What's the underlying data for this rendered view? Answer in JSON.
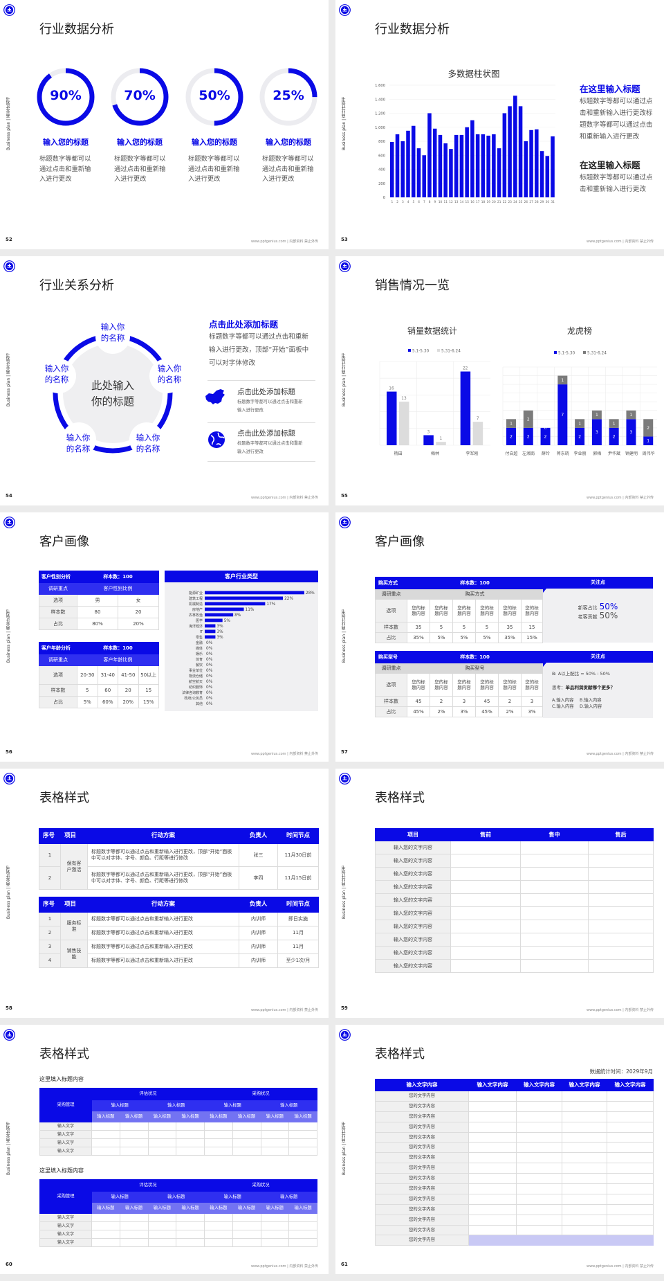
{
  "common": {
    "sidebar": "Business plan | 商业计划书",
    "footer": "www.pptgenius.com | 内部资料 禁止外传"
  },
  "colors": {
    "accent": "#0a0ae6",
    "ring_track": "#ececf0",
    "panel": "#f0f0f2",
    "series_light": "#dcdcdc",
    "series_dark": "#7b7b7b",
    "highlight_row": "#c9c9f5"
  },
  "slides": [
    {
      "page": "52",
      "title": "行业数据分析",
      "rings": [
        {
          "percent": 90,
          "label": "90%",
          "heading": "输入您的标题",
          "desc": "标题数字等都可以通过点击和重新输入进行更改"
        },
        {
          "percent": 70,
          "label": "70%",
          "heading": "输入您的标题",
          "desc": "标题数字等都可以通过点击和重新输入进行更改"
        },
        {
          "percent": 50,
          "label": "50%",
          "heading": "输入您的标题",
          "desc": "标题数字等都可以通过点击和重新输入进行更改"
        },
        {
          "percent": 25,
          "label": "25%",
          "heading": "输入您的标题",
          "desc": "标题数字等都可以通过点击和重新输入进行更改"
        }
      ]
    },
    {
      "page": "53",
      "title": "行业数据分析",
      "side": [
        {
          "heading": "在这里输入标题",
          "text": "标题数字等都可以通过点击和重新输入进行更改标题数字等都可以通过点击和重新输入进行更改"
        },
        {
          "heading": "在这里输入标题",
          "text": "标题数字等都可以通过点击和重新输入进行更改"
        }
      ]
    },
    {
      "page": "54",
      "title": "行业关系分析",
      "center": "此处输入你的标题",
      "labels": [
        "输入你的名称",
        "输入你的名称",
        "输入你的名称",
        "输入你的名称",
        "输入你的名称"
      ],
      "heading": "点击此处添加标题",
      "text": "标题数字等都可以通过点击和重新输入进行更改，顶部“开始”面板中可以对字体修改",
      "items": [
        {
          "icon": "china-map-icon",
          "title": "点击此处添加标题",
          "desc": "标题数字等都可以通过点击和重新输入进行更改"
        },
        {
          "icon": "globe-icon",
          "title": "点击此处添加标题",
          "desc": "标题数字等都可以通过点击和重新输入进行更改"
        }
      ]
    },
    {
      "page": "55",
      "title": "销售情况一览"
    },
    {
      "page": "56",
      "title": "客户画像",
      "gender": {
        "title": "客户性别分析",
        "sample": "样本数：100",
        "focus_label": "调研重点",
        "focus": "客户性别比例",
        "rows": [
          [
            "选项",
            "男",
            "女"
          ],
          [
            "样本数",
            "80",
            "20"
          ],
          [
            "占比",
            "80%",
            "20%"
          ]
        ]
      },
      "age": {
        "title": "客户年龄分析",
        "sample": "样本数：100",
        "focus_label": "调研重点",
        "focus": "客户年龄比例",
        "rows": [
          [
            "选项",
            "20-30",
            "31-40",
            "41-50",
            "50以上"
          ],
          [
            "样本数",
            "5",
            "60",
            "20",
            "15"
          ],
          [
            "占比",
            "5%",
            "60%",
            "20%",
            "15%"
          ]
        ]
      }
    },
    {
      "page": "57",
      "title": "客户画像",
      "tables": [
        {
          "title": "购买方式",
          "sample": "样本数：100",
          "focus_label": "调研重点",
          "focus": "购买方式",
          "rows": [
            [
              "选项",
              "您的标题内容",
              "您的标题内容",
              "您的标题内容",
              "您的标题内容",
              "您的标题内容",
              "您的标题内容"
            ],
            [
              "样本数",
              "35",
              "5",
              "5",
              "5",
              "35",
              "15"
            ],
            [
              "占比",
              "35%",
              "5%",
              "5%",
              "5%",
              "35%",
              "15%"
            ]
          ]
        },
        {
          "title": "购买型号",
          "sample": "样本数：100",
          "focus_label": "调研重点",
          "focus": "购买型号",
          "rows": [
            [
              "选项",
              "您的标题内容",
              "您的标题内容",
              "您的标题内容",
              "您的标题内容",
              "您的标题内容",
              "您的标题内容"
            ],
            [
              "样本数",
              "45",
              "2",
              "3",
              "45",
              "2",
              "3"
            ],
            [
              "占比",
              "45%",
              "2%",
              "3%",
              "45%",
              "2%",
              "3%"
            ]
          ]
        }
      ],
      "panels": [
        {
          "title": "关注点",
          "stats": [
            {
              "label": "新客占比",
              "value": "50%"
            },
            {
              "label": "老客贡献",
              "value": "50%"
            }
          ]
        },
        {
          "title": "关注点",
          "ratio": "B: A以上配比 = 50% : 50%",
          "question_label": "思考：",
          "question": "单品利润贡献哪个更多？",
          "options": [
            "A.输入内容",
            "B.输入内容",
            "C.输入内容",
            "D.输入内容"
          ]
        }
      ]
    },
    {
      "page": "58",
      "title": "表格样式",
      "headers": [
        "序号",
        "项目",
        "行动方案",
        "负责人",
        "时间节点"
      ],
      "table1": {
        "groups": [
          {
            "name": "保有客户激活",
            "span": 2
          }
        ],
        "rows": [
          {
            "no": "1",
            "plan": "标题数字等都可以通过点击和重新输入进行更改，顶部“开始”面板中可以对字体、字号、颜色、行距等进行修改",
            "owner": "张三",
            "time": "11月30日前"
          },
          {
            "no": "2",
            "plan": "标题数字等都可以通过点击和重新输入进行更改，顶部“开始”面板中可以对字体、字号、颜色、行距等进行修改",
            "owner": "李四",
            "time": "11月15日前"
          }
        ]
      },
      "table2": {
        "groups": [
          {
            "name": "服务标准",
            "span": 2
          },
          {
            "name": "销售技能",
            "span": 2
          }
        ],
        "rows": [
          {
            "no": "1",
            "plan": "标题数字等都可以通过点击和重新输入进行更改",
            "owner": "内训师",
            "time": "即日实施"
          },
          {
            "no": "2",
            "plan": "标题数字等都可以通过点击和重新输入进行更改",
            "owner": "内训师",
            "time": "11月"
          },
          {
            "no": "3",
            "plan": "标题数字等都可以通过点击和重新输入进行更改",
            "owner": "内训师",
            "time": "11月"
          },
          {
            "no": "4",
            "plan": "标题数字等都可以通过点击和重新输入进行更改",
            "owner": "内训师",
            "time": "至少1次/月"
          }
        ]
      }
    },
    {
      "page": "59",
      "title": "表格样式",
      "headers": [
        "项目",
        "售前",
        "售中",
        "售后"
      ],
      "rows": [
        "输入您的文字内容",
        "输入您的文字内容",
        "输入您的文字内容",
        "输入您的文字内容",
        "输入您的文字内容",
        "输入您的文字内容",
        "输入您的文字内容",
        "输入您的文字内容",
        "输入您的文字内容",
        "输入您的文字内容"
      ]
    },
    {
      "page": "60",
      "title": "表格样式",
      "blocks": [
        {
          "subtitle": "这里填入标题内容",
          "corner": "采购管理",
          "groups": [
            "评估状况",
            "采购状况"
          ],
          "subgroups": [
            "输入标题",
            "输入标题",
            "输入标题",
            "输入标题"
          ],
          "columns": [
            "输入标题",
            "输入标题",
            "输入标题",
            "输入标题",
            "输入标题",
            "输入标题",
            "输入标题",
            "输入标题"
          ],
          "rows": [
            "输入文字",
            "输入文字",
            "输入文字",
            "输入文字"
          ]
        },
        {
          "subtitle": "这里填入标题内容",
          "corner": "采购管理",
          "groups": [
            "评估状况",
            "采购状况"
          ],
          "subgroups": [
            "输入标题",
            "输入标题",
            "输入标题",
            "输入标题"
          ],
          "columns": [
            "输入标题",
            "输入标题",
            "输入标题",
            "输入标题",
            "输入标题",
            "输入标题",
            "输入标题",
            "输入标题"
          ],
          "rows": [
            "输入文字",
            "输入文字",
            "输入文字",
            "输入文字"
          ]
        }
      ]
    },
    {
      "page": "61",
      "title": "表格样式",
      "date": "数据统计时间：2029年9月",
      "headers": [
        "输入文字内容",
        "输入文字内容",
        "输入文字内容",
        "输入文字内容",
        "输入文字内容"
      ],
      "rows": [
        "您的文字内容",
        "您的文字内容",
        "您的文字内容",
        "您的文字内容",
        "您的文字内容",
        "您的文字内容",
        "您的文字内容",
        "您的文字内容",
        "您的文字内容",
        "您的文字内容",
        "您的文字内容",
        "您的文字内容",
        "您的文字内容",
        "您的文字内容",
        "您的文字内容"
      ]
    }
  ],
  "chart_data": [
    {
      "type": "bar",
      "title": "多数据柱状图",
      "xlabel": "",
      "ylabel": "",
      "categories": [
        "1",
        "2",
        "3",
        "4",
        "5",
        "6",
        "7",
        "8",
        "9",
        "10",
        "11",
        "12",
        "13",
        "14",
        "15",
        "16",
        "17",
        "18",
        "19",
        "20",
        "21",
        "22",
        "23",
        "24",
        "25",
        "26",
        "27",
        "28",
        "29",
        "30",
        "31"
      ],
      "values": [
        790,
        900,
        800,
        950,
        1020,
        700,
        600,
        1200,
        980,
        890,
        770,
        690,
        890,
        890,
        1000,
        1100,
        900,
        900,
        880,
        900,
        700,
        1200,
        1300,
        1450,
        1300,
        800,
        960,
        970,
        660,
        590,
        870
      ],
      "ylim": [
        0,
        1600
      ],
      "yticks": [
        "0",
        "200",
        "400",
        "600",
        "800",
        "1,000",
        "1,200",
        "1,400",
        "1,600"
      ],
      "grid": true
    },
    {
      "type": "bar",
      "title": "销量数据统计",
      "legend": "top",
      "categories": [
        "杨田",
        "梅林",
        "李军刚"
      ],
      "series": [
        {
          "name": "5.1-5.30",
          "values": [
            16,
            3,
            22
          ]
        },
        {
          "name": "5.31-6.24",
          "values": [
            13,
            1,
            7
          ]
        }
      ],
      "ylim": [
        0,
        25
      ],
      "grid": true
    },
    {
      "type": "bar",
      "stacked": true,
      "title": "龙虎榜",
      "legend": "top",
      "categories": [
        "付自超",
        "左湘南",
        "薛玲",
        "蒋东晓",
        "李业丽",
        "郭梅",
        "尹华斌",
        "钟建明",
        "周伟华"
      ],
      "series": [
        {
          "name": "5.1-5.30",
          "values": [
            2,
            2,
            2,
            7,
            2,
            3,
            2,
            3,
            1
          ]
        },
        {
          "name": "5.31-6.24",
          "values": [
            1,
            2,
            0,
            1,
            1,
            1,
            1,
            1,
            2
          ]
        }
      ],
      "ylim": [
        0,
        9
      ],
      "grid": true
    },
    {
      "type": "bar",
      "orientation": "horizontal",
      "title": "客户行业类型",
      "categories": [
        "能源矿业",
        "建筑工程",
        "机械制造",
        "房地产",
        "农林牧渔",
        "医学",
        "海洋经济",
        "IT",
        "零售",
        "金融",
        "媒体",
        "娱乐",
        "体育",
        "餐饮",
        "事业单位",
        "物流仓储",
        "航空航天",
        "纺织服饰",
        "法律咨询教育",
        "政府/公务员",
        "其他"
      ],
      "values": [
        28,
        22,
        17,
        11,
        8,
        5,
        3,
        3,
        3,
        0,
        0,
        0,
        0,
        0,
        0,
        0,
        0,
        0,
        0,
        0,
        0
      ],
      "labels": [
        "28%",
        "22%",
        "17%",
        "11%",
        "8%",
        "5%",
        "3%",
        "3%",
        "3%",
        "0%",
        "0%",
        "0%",
        "0%",
        "0%",
        "0%",
        "0%",
        "0%",
        "0%",
        "0%",
        "0%",
        "0%"
      ]
    }
  ]
}
